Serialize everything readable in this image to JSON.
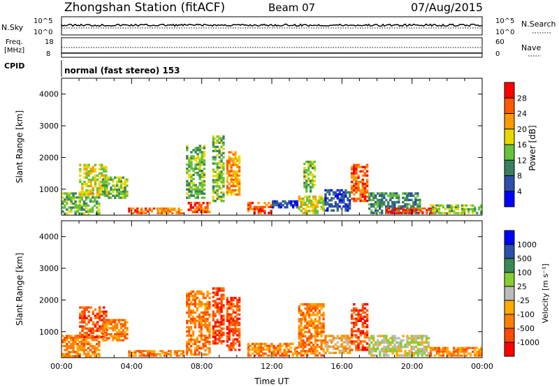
{
  "header": {
    "title": "Zhongshan Station (fitACF)",
    "beam": "Beam 07",
    "date": "07/Aug/2015"
  },
  "panels": {
    "nsky_label": "N.Sky",
    "nsearch_label": "N.Search",
    "freq_label_1": "Freq.",
    "freq_label_2": "[MHz]",
    "nave_label": "Nave",
    "cpid_label": "CPID",
    "mode_text": "normal (fast stereo) 153",
    "nsky_ticks": [
      "10^5",
      "10^0"
    ],
    "nsearch_ticks": [
      "10^5",
      "10^0"
    ],
    "freq_ticks": [
      "18",
      "8"
    ],
    "nave_ticks": [
      "60",
      "0"
    ]
  },
  "colors": {
    "power_scale": [
      "#0000ff",
      "#2d4fa6",
      "#3a8060",
      "#66c23a",
      "#e6d800",
      "#ff9a00",
      "#ff5a00",
      "#ff0000"
    ],
    "velocity_scale": [
      "#ff0000",
      "#ff4a00",
      "#ff7f00",
      "#ffaa00",
      "#bbbbbb",
      "#88cc33",
      "#3a8a55",
      "#2d4fa6",
      "#0000ff"
    ]
  },
  "chart_data": [
    {
      "type": "heatmap",
      "name": "power",
      "xlabel": "",
      "ylabel": "Slant Range [km]",
      "xlim": [
        0,
        24
      ],
      "ylim": [
        180,
        4500
      ],
      "yticks": [
        1000,
        2000,
        3000,
        4000
      ],
      "colorbar_label": "Power [dB]",
      "colorbar_ticks": [
        "4",
        "8",
        "12",
        "16",
        "20",
        "24",
        "28"
      ],
      "blobs": [
        {
          "t0": 0.0,
          "t1": 2.2,
          "r0": 200,
          "r1": 900,
          "level": 3
        },
        {
          "t0": 1.0,
          "t1": 2.6,
          "r0": 800,
          "r1": 1800,
          "level": 4
        },
        {
          "t0": 2.3,
          "t1": 3.8,
          "r0": 700,
          "r1": 1400,
          "level": 3
        },
        {
          "t0": 3.8,
          "t1": 5.8,
          "r0": 220,
          "r1": 420,
          "level": 6
        },
        {
          "t0": 5.4,
          "t1": 7.0,
          "r0": 220,
          "r1": 420,
          "level": 5
        },
        {
          "t0": 7.1,
          "t1": 8.2,
          "r0": 700,
          "r1": 2400,
          "level": 3
        },
        {
          "t0": 7.2,
          "t1": 8.5,
          "r0": 250,
          "r1": 600,
          "level": 6
        },
        {
          "t0": 8.6,
          "t1": 9.3,
          "r0": 600,
          "r1": 2700,
          "level": 3
        },
        {
          "t0": 9.4,
          "t1": 10.2,
          "r0": 800,
          "r1": 2200,
          "level": 5
        },
        {
          "t0": 10.6,
          "t1": 12.0,
          "r0": 220,
          "r1": 600,
          "level": 6
        },
        {
          "t0": 12.0,
          "t1": 13.5,
          "r0": 400,
          "r1": 650,
          "level": 1
        },
        {
          "t0": 13.5,
          "t1": 15.0,
          "r0": 220,
          "r1": 800,
          "level": 4
        },
        {
          "t0": 13.8,
          "t1": 14.5,
          "r0": 900,
          "r1": 1900,
          "level": 3
        },
        {
          "t0": 15.0,
          "t1": 16.5,
          "r0": 300,
          "r1": 1000,
          "level": 1
        },
        {
          "t0": 16.5,
          "t1": 17.5,
          "r0": 600,
          "r1": 1800,
          "level": 6
        },
        {
          "t0": 17.5,
          "t1": 20.5,
          "r0": 220,
          "r1": 900,
          "level": 2
        },
        {
          "t0": 18.5,
          "t1": 21.5,
          "r0": 220,
          "r1": 420,
          "level": 7
        },
        {
          "t0": 21.0,
          "t1": 24.0,
          "r0": 220,
          "r1": 520,
          "level": 3
        }
      ]
    },
    {
      "type": "heatmap",
      "name": "velocity",
      "xlabel": "Time UT",
      "ylabel": "Slant Range [km]",
      "xlim": [
        0,
        24
      ],
      "ylim": [
        180,
        4500
      ],
      "xticks": [
        "00:00",
        "04:00",
        "08:00",
        "12:00",
        "16:00",
        "20:00",
        "00:00"
      ],
      "yticks": [
        1000,
        2000,
        3000,
        4000
      ],
      "colorbar_label": "Velocity [m s⁻¹]",
      "colorbar_ticks": [
        "-1000",
        "-500",
        "-100",
        "-25",
        "25",
        "100",
        "500",
        "1000"
      ],
      "blobs": [
        {
          "t0": 0.0,
          "t1": 2.2,
          "r0": 200,
          "r1": 900,
          "level": 2
        },
        {
          "t0": 1.0,
          "t1": 2.6,
          "r0": 800,
          "r1": 1800,
          "level": 1
        },
        {
          "t0": 2.3,
          "t1": 3.8,
          "r0": 700,
          "r1": 1400,
          "level": 2
        },
        {
          "t0": 3.8,
          "t1": 7.0,
          "r0": 220,
          "r1": 420,
          "level": 2
        },
        {
          "t0": 7.1,
          "t1": 8.5,
          "r0": 250,
          "r1": 2300,
          "level": 2
        },
        {
          "t0": 8.6,
          "t1": 9.3,
          "r0": 600,
          "r1": 2400,
          "level": 1
        },
        {
          "t0": 9.4,
          "t1": 10.2,
          "r0": 400,
          "r1": 2100,
          "level": 1
        },
        {
          "t0": 10.6,
          "t1": 13.5,
          "r0": 220,
          "r1": 650,
          "level": 2
        },
        {
          "t0": 13.5,
          "t1": 15.0,
          "r0": 220,
          "r1": 1900,
          "level": 2
        },
        {
          "t0": 15.0,
          "t1": 16.5,
          "r0": 300,
          "r1": 900,
          "level": 3
        },
        {
          "t0": 16.5,
          "t1": 17.5,
          "r0": 400,
          "r1": 1900,
          "level": 1
        },
        {
          "t0": 17.5,
          "t1": 21.0,
          "r0": 220,
          "r1": 900,
          "level": 4
        },
        {
          "t0": 21.0,
          "t1": 24.0,
          "r0": 220,
          "r1": 520,
          "level": 2
        }
      ]
    }
  ]
}
